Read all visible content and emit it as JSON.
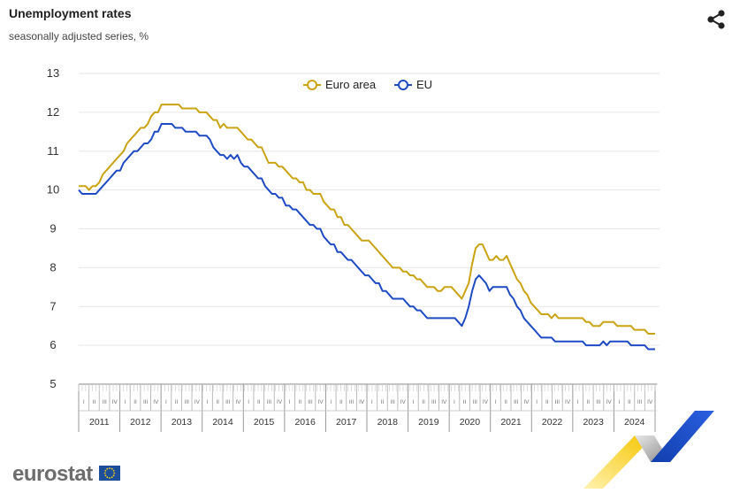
{
  "header": {
    "title": "Unemployment rates",
    "subtitle": "seasonally adjusted series, %"
  },
  "icons": {
    "share": "share-icon",
    "flag": "eu-flag-icon"
  },
  "brand": {
    "name": "eurostat"
  },
  "colors": {
    "euro_area": "#C9A311",
    "eu": "#1E4BC4",
    "grid": "#E6E6E6",
    "axis": "#888888"
  },
  "chart_data": {
    "type": "line",
    "title": "Unemployment rates",
    "subtitle": "seasonally adjusted series, %",
    "xlabel": "",
    "ylabel": "",
    "ylim": [
      5,
      13
    ],
    "yticks": [
      "5",
      "6",
      "7",
      "8",
      "9",
      "10",
      "11",
      "12",
      "13"
    ],
    "grid": true,
    "legend_position": "top-center",
    "quarter_labels": [
      "I",
      "II",
      "III",
      "IV"
    ],
    "years": [
      "2011",
      "2012",
      "2013",
      "2014",
      "2015",
      "2016",
      "2017",
      "2018",
      "2019",
      "2020",
      "2021",
      "2022",
      "2023",
      "2024"
    ],
    "x_start": "2011-01",
    "x_end": "2024-12",
    "series": [
      {
        "name": "Euro area",
        "values": [
          10.1,
          10.1,
          10.1,
          10.0,
          10.1,
          10.1,
          10.2,
          10.4,
          10.5,
          10.6,
          10.7,
          10.8,
          10.9,
          11.0,
          11.2,
          11.3,
          11.4,
          11.5,
          11.6,
          11.6,
          11.7,
          11.9,
          12.0,
          12.0,
          12.2,
          12.2,
          12.2,
          12.2,
          12.2,
          12.2,
          12.1,
          12.1,
          12.1,
          12.1,
          12.1,
          12.0,
          12.0,
          12.0,
          11.9,
          11.8,
          11.8,
          11.6,
          11.7,
          11.6,
          11.6,
          11.6,
          11.6,
          11.5,
          11.4,
          11.3,
          11.3,
          11.2,
          11.1,
          11.1,
          10.9,
          10.7,
          10.7,
          10.7,
          10.6,
          10.6,
          10.5,
          10.4,
          10.3,
          10.3,
          10.2,
          10.2,
          10.0,
          10.0,
          9.9,
          9.9,
          9.9,
          9.7,
          9.6,
          9.5,
          9.5,
          9.3,
          9.3,
          9.1,
          9.1,
          9.0,
          8.9,
          8.8,
          8.7,
          8.7,
          8.7,
          8.6,
          8.5,
          8.4,
          8.3,
          8.2,
          8.1,
          8.0,
          8.0,
          8.0,
          7.9,
          7.9,
          7.8,
          7.8,
          7.7,
          7.7,
          7.6,
          7.5,
          7.5,
          7.5,
          7.4,
          7.4,
          7.5,
          7.5,
          7.5,
          7.4,
          7.3,
          7.2,
          7.4,
          7.6,
          8.1,
          8.5,
          8.6,
          8.6,
          8.4,
          8.2,
          8.2,
          8.3,
          8.2,
          8.2,
          8.3,
          8.1,
          7.9,
          7.7,
          7.6,
          7.4,
          7.3,
          7.1,
          7.0,
          6.9,
          6.8,
          6.8,
          6.8,
          6.7,
          6.8,
          6.7,
          6.7,
          6.7,
          6.7,
          6.7,
          6.7,
          6.7,
          6.7,
          6.6,
          6.6,
          6.5,
          6.5,
          6.5,
          6.6,
          6.6,
          6.6,
          6.6,
          6.5,
          6.5,
          6.5,
          6.5,
          6.5,
          6.4,
          6.4,
          6.4,
          6.4,
          6.3,
          6.3,
          6.3
        ]
      },
      {
        "name": "EU",
        "values": [
          10.0,
          9.9,
          9.9,
          9.9,
          9.9,
          9.9,
          10.0,
          10.1,
          10.2,
          10.3,
          10.4,
          10.5,
          10.5,
          10.7,
          10.8,
          10.9,
          11.0,
          11.0,
          11.1,
          11.2,
          11.2,
          11.3,
          11.5,
          11.5,
          11.7,
          11.7,
          11.7,
          11.7,
          11.6,
          11.6,
          11.6,
          11.5,
          11.5,
          11.5,
          11.5,
          11.4,
          11.4,
          11.4,
          11.3,
          11.1,
          11.0,
          10.9,
          10.9,
          10.8,
          10.9,
          10.8,
          10.9,
          10.7,
          10.6,
          10.6,
          10.5,
          10.4,
          10.3,
          10.3,
          10.1,
          10.0,
          9.9,
          9.9,
          9.8,
          9.8,
          9.6,
          9.6,
          9.5,
          9.5,
          9.4,
          9.3,
          9.2,
          9.1,
          9.1,
          9.0,
          9.0,
          8.8,
          8.7,
          8.6,
          8.6,
          8.4,
          8.4,
          8.3,
          8.2,
          8.2,
          8.1,
          8.0,
          7.9,
          7.8,
          7.8,
          7.7,
          7.6,
          7.6,
          7.4,
          7.4,
          7.3,
          7.2,
          7.2,
          7.2,
          7.2,
          7.1,
          7.0,
          7.0,
          6.9,
          6.9,
          6.8,
          6.7,
          6.7,
          6.7,
          6.7,
          6.7,
          6.7,
          6.7,
          6.7,
          6.7,
          6.6,
          6.5,
          6.7,
          7.0,
          7.4,
          7.7,
          7.8,
          7.7,
          7.6,
          7.4,
          7.5,
          7.5,
          7.5,
          7.5,
          7.5,
          7.3,
          7.2,
          7.0,
          6.9,
          6.7,
          6.6,
          6.5,
          6.4,
          6.3,
          6.2,
          6.2,
          6.2,
          6.2,
          6.1,
          6.1,
          6.1,
          6.1,
          6.1,
          6.1,
          6.1,
          6.1,
          6.1,
          6.0,
          6.0,
          6.0,
          6.0,
          6.0,
          6.1,
          6.0,
          6.1,
          6.1,
          6.1,
          6.1,
          6.1,
          6.1,
          6.0,
          6.0,
          6.0,
          6.0,
          6.0,
          5.9,
          5.9,
          5.9
        ]
      }
    ]
  }
}
